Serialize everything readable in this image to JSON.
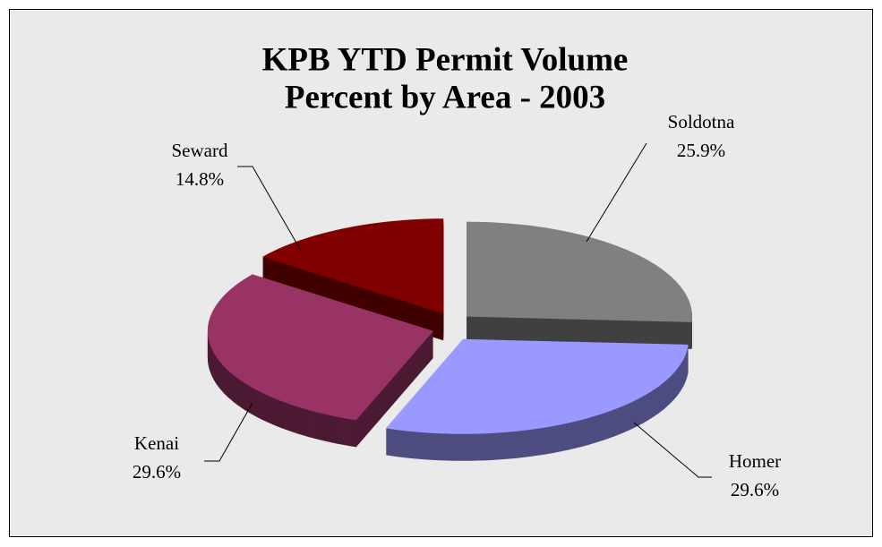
{
  "chart_data": {
    "type": "pie",
    "title": [
      "KPB YTD Permit Volume",
      "Percent by Area - 2003"
    ],
    "categories": [
      "Soldotna",
      "Homer",
      "Kenai",
      "Seward"
    ],
    "values": [
      25.9,
      29.6,
      29.6,
      14.8
    ],
    "value_labels": [
      "25.9%",
      "29.6%",
      "29.6%",
      "14.8%"
    ],
    "colors": [
      "#808080",
      "#9999ff",
      "#993366",
      "#800000"
    ]
  }
}
